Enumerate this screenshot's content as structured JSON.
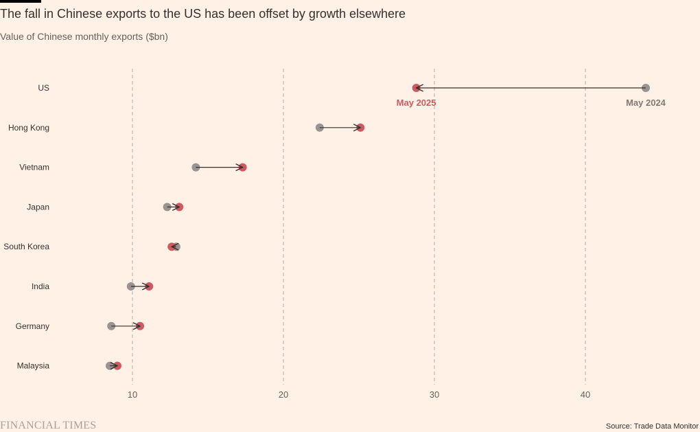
{
  "header": {
    "title": "The fall in Chinese exports to the US has been offset by growth elsewhere",
    "subtitle": "Value of Chinese monthly exports ($bn)"
  },
  "footer": {
    "brand": "FINANCIAL TIMES",
    "source": "Source: Trade Data Monitor"
  },
  "colors": {
    "may2024": "#999491",
    "may2025": "#cc5b61",
    "arrow": "#33302e",
    "grid": "#b3aca6",
    "background": "#fff1e5"
  },
  "chart_data": {
    "type": "scatter",
    "chart_style": "dumbbell-arrow",
    "title": "The fall in Chinese exports to the US has been offset by growth elsewhere",
    "subtitle": "Value of Chinese monthly exports ($bn)",
    "categories": [
      "US",
      "Hong Kong",
      "Vietnam",
      "Japan",
      "South Korea",
      "India",
      "Germany",
      "Malaysia"
    ],
    "series": [
      {
        "name": "May 2024",
        "color": "#999491",
        "values": [
          44.0,
          22.4,
          14.2,
          12.3,
          12.9,
          9.9,
          8.6,
          8.5
        ]
      },
      {
        "name": "May 2025",
        "color": "#cc5b61",
        "values": [
          28.8,
          25.1,
          17.3,
          13.1,
          12.6,
          11.1,
          10.5,
          9.0
        ]
      }
    ],
    "annotations": [
      {
        "text": "May 2025",
        "series": "May 2025",
        "category": "US",
        "color": "#cc5b61"
      },
      {
        "text": "May 2024",
        "series": "May 2024",
        "category": "US",
        "color": "#807974"
      }
    ],
    "x_ticks": [
      10,
      20,
      30,
      40
    ],
    "xlim": [
      5,
      45
    ],
    "grid": true,
    "grid_style": "vertical dashed",
    "legend": "none (direct labels on first row)"
  }
}
